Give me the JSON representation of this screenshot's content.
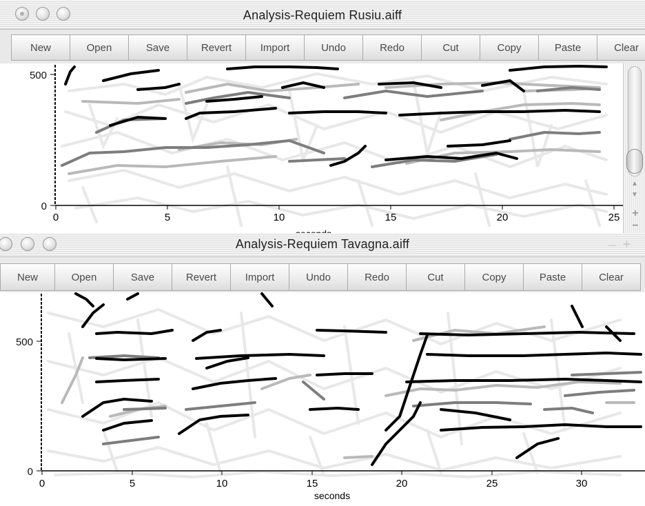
{
  "colors": {
    "dark": "#000000",
    "mid": "#7a7a7a",
    "light": "#b9b9b9",
    "ghost": "#e6e6e6"
  },
  "icons": [
    "close-icon",
    "minimize-icon",
    "zoom-icon",
    "scroll-up-arrow-icon",
    "scroll-down-arrow-icon",
    "zoom-in-icon",
    "zoom-out-icon"
  ],
  "windows": [
    {
      "title": "Analysis-Requiem Rusiu.aiff",
      "toolbar": [
        "New",
        "Open",
        "Save",
        "Revert",
        "Import",
        "Undo",
        "Redo",
        "Cut",
        "Copy",
        "Paste",
        "Clear"
      ],
      "x_ticks": [
        "0",
        "5",
        "10",
        "15",
        "20",
        "25"
      ],
      "y_ticks": [
        "0",
        "500"
      ],
      "x_label": "seconds"
    },
    {
      "title": "Analysis-Requiem Tavagna.aiff",
      "toolbar": [
        "New",
        "Open",
        "Save",
        "Revert",
        "Import",
        "Undo",
        "Redo",
        "Cut",
        "Copy",
        "Paste",
        "Clear"
      ],
      "x_ticks": [
        "0",
        "5",
        "10",
        "15",
        "20",
        "25",
        "30"
      ],
      "y_ticks": [
        "0",
        "500"
      ],
      "x_label": "seconds"
    }
  ]
}
